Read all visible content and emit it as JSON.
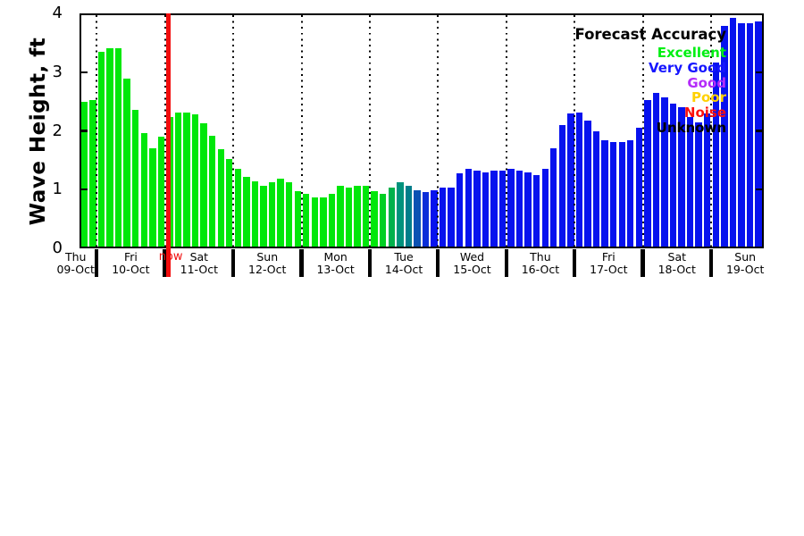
{
  "legend": {
    "header": "Forecast Accuracy",
    "header_color": "#000000",
    "items": [
      {
        "label": "Excellent",
        "color": "#00ef12"
      },
      {
        "label": "Very Good",
        "color": "#1616ff"
      },
      {
        "label": "Good",
        "color": "#b42bfa"
      },
      {
        "label": "Poor",
        "color": "#ffd100"
      },
      {
        "label": "Noise",
        "color": "#fc100d"
      },
      {
        "label": "Unknown",
        "color": "#000000"
      }
    ]
  },
  "y_axis": {
    "label": "Wave Height, ft",
    "ticks": [
      0,
      1,
      2,
      3,
      4
    ]
  },
  "now_marker": {
    "label": "now",
    "color": "#f01010",
    "line_color": "#f20d0d",
    "at_day_date": "11-Oct"
  },
  "chart_data": {
    "type": "bar",
    "title": "",
    "ylabel": "Wave Height, ft",
    "ylim": [
      0,
      4
    ],
    "grid": "dotted vertical lines at day boundaries",
    "legend_position": "upper right",
    "bar_interval_hours": 3,
    "accuracy_colors": {
      "excellent": "#00e70a",
      "very_good": "#0712ee"
    },
    "days": [
      {
        "weekday": "Thu",
        "date": "09-Oct",
        "start_slot": 6,
        "values": [
          2.46,
          2.5
        ],
        "bar_colors": "#00e70a"
      },
      {
        "weekday": "Fri",
        "date": "10-Oct",
        "values": [
          3.32,
          3.38,
          3.37,
          2.86,
          2.33,
          1.93,
          1.67,
          1.87
        ],
        "bar_colors": "#00e70a"
      },
      {
        "weekday": "Sat",
        "date": "11-Oct",
        "values": [
          2.21,
          2.28,
          2.28,
          2.25,
          2.1,
          1.88,
          1.66,
          1.49
        ],
        "bar_colors": "#00e70a"
      },
      {
        "weekday": "Sun",
        "date": "12-Oct",
        "values": [
          1.33,
          1.18,
          1.11,
          1.04,
          1.09,
          1.15,
          1.1,
          0.95
        ],
        "bar_colors": "#00e70a"
      },
      {
        "weekday": "Mon",
        "date": "13-Oct",
        "values": [
          0.89,
          0.83,
          0.83,
          0.89,
          1.04,
          1.01,
          1.04,
          1.04
        ],
        "bar_colors": "#00e70a"
      },
      {
        "weekday": "Tue",
        "date": "14-Oct",
        "values": [
          0.95,
          0.89,
          1.01,
          1.1,
          1.04,
          0.96,
          0.93,
          0.96
        ],
        "bar_colors": [
          "#00e70a",
          "#00cf23",
          "#00b14b",
          "#00927c",
          "#007d8a",
          "#0b51b3",
          "#0a2ed9",
          "#0712ee"
        ]
      },
      {
        "weekday": "Wed",
        "date": "15-Oct",
        "values": [
          1.01,
          1.01,
          1.25,
          1.33,
          1.3,
          1.27,
          1.3,
          1.3
        ],
        "bar_colors": "#0712ee"
      },
      {
        "weekday": "Thu",
        "date": "16-Oct",
        "values": [
          1.33,
          1.3,
          1.27,
          1.22,
          1.33,
          1.67,
          2.07,
          2.27
        ],
        "bar_colors": "#0712ee"
      },
      {
        "weekday": "Fri",
        "date": "17-Oct",
        "values": [
          2.28,
          2.14,
          1.96,
          1.81,
          1.78,
          1.78,
          1.81,
          2.03
        ],
        "bar_colors": "#0712ee"
      },
      {
        "weekday": "Sat",
        "date": "18-Oct",
        "values": [
          2.49,
          2.61,
          2.54,
          2.44,
          2.37,
          2.2,
          2.11,
          2.27
        ],
        "bar_colors": "#0712ee"
      },
      {
        "weekday": "Sun",
        "date": "19-Oct",
        "values": [
          3.13,
          3.76,
          3.9,
          3.81,
          3.81,
          3.83
        ],
        "bar_colors": "#0712ee"
      }
    ]
  }
}
